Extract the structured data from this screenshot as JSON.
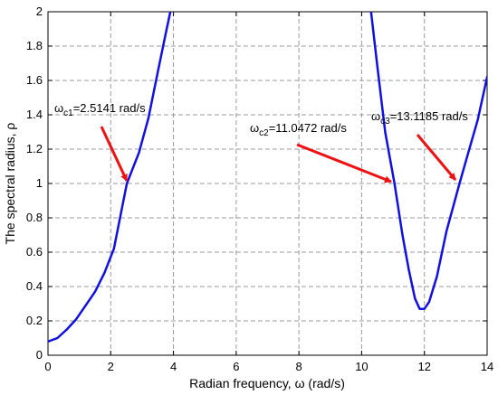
{
  "chart_data": {
    "type": "line",
    "title": "",
    "xlabel_main": "Radian frequency, ",
    "xlabel_symbol": "ω",
    "xlabel_unit": " (rad/s)",
    "ylabel_main": "The spectral radius, ",
    "ylabel_symbol": "ρ",
    "xlim": [
      0,
      14
    ],
    "ylim": [
      0,
      2
    ],
    "xticks": [
      0,
      2,
      4,
      6,
      8,
      10,
      12,
      14
    ],
    "xtick_labels": [
      "0",
      "2",
      "4",
      "6",
      "8",
      "10",
      "12",
      "14"
    ],
    "yticks": [
      0,
      0.2,
      0.4,
      0.6,
      0.8,
      1,
      1.2,
      1.4,
      1.6,
      1.8,
      2
    ],
    "ytick_labels": [
      "0",
      "0.2",
      "0.4",
      "0.6",
      "0.8",
      "1",
      "1.2",
      "1.4",
      "1.6",
      "1.8",
      "2"
    ],
    "grid": true,
    "line_color": "#1010e0",
    "arrow_color": "#ee1111",
    "series": [
      {
        "segments": [
          [
            [
              0,
              0.08
            ],
            [
              0.3,
              0.1
            ],
            [
              0.6,
              0.15
            ],
            [
              0.9,
              0.21
            ],
            [
              1.2,
              0.29
            ],
            [
              1.5,
              0.37
            ],
            [
              1.8,
              0.48
            ],
            [
              2.1,
              0.62
            ],
            [
              2.5141,
              1.0
            ],
            [
              2.9,
              1.18
            ],
            [
              3.2,
              1.38
            ],
            [
              3.5,
              1.65
            ],
            [
              3.75,
              1.87
            ],
            [
              3.9,
              2.0
            ]
          ],
          [
            [
              10.3,
              2.0
            ],
            [
              10.5,
              1.68
            ],
            [
              10.75,
              1.3
            ],
            [
              11.0472,
              1.0
            ],
            [
              11.3,
              0.7
            ],
            [
              11.5,
              0.5
            ],
            [
              11.7,
              0.33
            ],
            [
              11.85,
              0.27
            ],
            [
              12.0,
              0.27
            ],
            [
              12.15,
              0.31
            ],
            [
              12.4,
              0.46
            ],
            [
              12.7,
              0.72
            ],
            [
              13.1185,
              1.0
            ],
            [
              13.4,
              1.18
            ],
            [
              13.7,
              1.37
            ],
            [
              14.0,
              1.62
            ]
          ]
        ]
      }
    ],
    "annotations": [
      {
        "omega": "ω",
        "sub": "c1",
        "text": "=2.5141 rad/s",
        "point": [
          2.5141,
          1.0
        ]
      },
      {
        "omega": "ω",
        "sub": "c2",
        "text": "=11.0472 rad/s",
        "point": [
          11.0472,
          1.0
        ]
      },
      {
        "omega": "ω",
        "sub": "c3",
        "text": "=13.1185 rad/s",
        "point": [
          13.1185,
          1.0
        ]
      }
    ]
  }
}
